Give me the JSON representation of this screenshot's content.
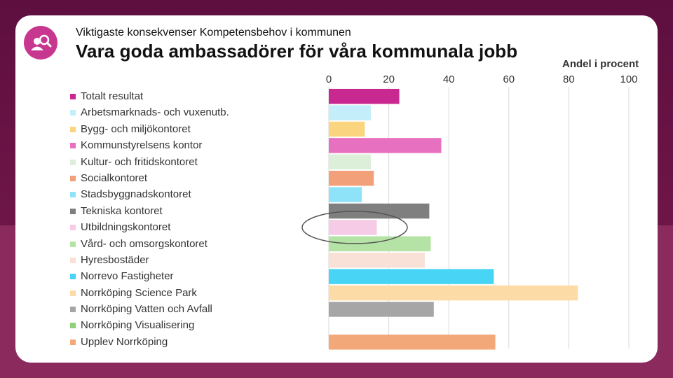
{
  "header": {
    "subtitle": "Viktigaste konsekvenser Kompetensbehov i kommunen",
    "title": "Vara goda ambassadörer för våra kommunala jobb"
  },
  "logo": {
    "icon": "person-search-icon",
    "color": "#c8378f"
  },
  "chart_data": {
    "type": "bar",
    "orientation": "horizontal",
    "axis_title": "Andel i procent",
    "xlim": [
      0,
      100
    ],
    "ticks": [
      "0",
      "20",
      "40",
      "60",
      "80",
      "100"
    ],
    "tick_values": [
      0,
      20,
      40,
      60,
      80,
      100
    ],
    "grid": true,
    "legend_position": "left",
    "categories": [
      "Totalt resultat",
      "Arbetsmarknads- och vuxenutb.",
      "Bygg- och miljökontoret",
      "Kommunstyrelsens kontor",
      "Kultur- och fritidskontoret",
      "Socialkontoret",
      "Stadsbyggnadskontoret",
      "Tekniska kontoret",
      "Utbildningskontoret",
      "Vård- och omsorgskontoret",
      "Hyresbostäder",
      "Norrevo Fastigheter",
      "Norrköping Science Park",
      "Norrköping Vatten och Avfall",
      "Norrköping Visualisering",
      "Upplev Norrköping"
    ],
    "values": [
      23.5,
      14,
      12,
      37.5,
      14,
      15,
      11,
      33.5,
      16,
      34,
      32,
      55,
      83,
      35,
      0,
      55.5
    ],
    "colors": [
      "#c8288f",
      "#c4eef9",
      "#fbd47f",
      "#e870c0",
      "#dcefd8",
      "#f2a07a",
      "#8fe3f8",
      "#7f7f7f",
      "#f5cbe6",
      "#b5e3a5",
      "#f9e1d8",
      "#47d4f5",
      "#fcdba6",
      "#a6a6a6",
      "#8fd07c",
      "#f2a878"
    ],
    "highlight": "Utbildningskontoret"
  }
}
